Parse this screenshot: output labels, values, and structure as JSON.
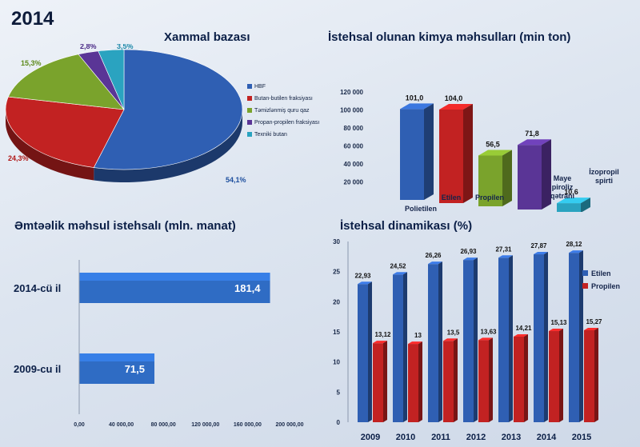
{
  "year_label": "2014",
  "chart_data": [
    {
      "type": "pie",
      "title": "Xammal bazası",
      "categories": [
        "HBF",
        "Butan-butilen fraksiyası",
        "Təmizlənmiş quru qaz",
        "Propan-propilen fraksiyası",
        "Texniki butan"
      ],
      "values": [
        54.1,
        24.3,
        15.3,
        2.8,
        3.5
      ],
      "value_labels": [
        "54,1%",
        "24,3%",
        "15,3%",
        "2,8%",
        "3,5%"
      ],
      "colors": [
        "#2f5fb3",
        "#c22222",
        "#7aa32c",
        "#5a3596",
        "#2aa3c0"
      ],
      "legend": "right"
    },
    {
      "type": "bar",
      "title": "İstehsal olunan kimya məhsulları (min ton)",
      "categories": [
        "Polietilen",
        "Etilen",
        "Propilen",
        "Maye piroliz qətranı",
        "İzopropil spirti"
      ],
      "values": [
        101.0,
        104.0,
        56.5,
        71.8,
        10.6
      ],
      "value_labels": [
        "101,0",
        "104,0",
        "56,5",
        "71,8",
        "10,6"
      ],
      "colors": [
        "#2f5fb3",
        "#c22222",
        "#7aa32c",
        "#5a3596",
        "#2aa3c0"
      ],
      "y_ticks": [
        "20 000",
        "40 000",
        "60 000",
        "80 000",
        "100 000",
        "120 000"
      ],
      "ylim": [
        0,
        120
      ]
    },
    {
      "type": "bar",
      "orientation": "horizontal",
      "title": "Əmtəəlik məhsul istehsalı (mln. manat)",
      "categories": [
        "2014-cü il",
        "2009-cu il"
      ],
      "values": [
        181.4,
        71.5
      ],
      "value_labels": [
        "181,4",
        "71,5"
      ],
      "x_ticks": [
        "0,00",
        "40 000,00",
        "80 000,00",
        "120 000,00",
        "160 000,00",
        "200 000,00"
      ],
      "xlim": [
        0,
        200
      ],
      "color": "#2f6cc4"
    },
    {
      "type": "bar",
      "title": "İstehsal dinamikası (%)",
      "categories": [
        "2009",
        "2010",
        "2011",
        "2012",
        "2013",
        "2014",
        "2015"
      ],
      "series": [
        {
          "name": "Etilen",
          "values": [
            22.93,
            24.52,
            26.26,
            26.93,
            27.31,
            27.87,
            28.12
          ],
          "value_labels": [
            "22,93",
            "24,52",
            "26,26",
            "26,93",
            "27,31",
            "27,87",
            "28,12"
          ],
          "color": "#2f5fb3"
        },
        {
          "name": "Propilen",
          "values": [
            13.12,
            13,
            13.5,
            13.63,
            14.21,
            15.13,
            15.27
          ],
          "value_labels": [
            "13,12",
            "13",
            "13,5",
            "13,63",
            "14,21",
            "15,13",
            "15,27"
          ],
          "color": "#c22222"
        }
      ],
      "y_ticks": [
        "0",
        "5",
        "10",
        "15",
        "20",
        "25",
        "30"
      ],
      "ylim": [
        0,
        30
      ],
      "legend": "right"
    }
  ]
}
